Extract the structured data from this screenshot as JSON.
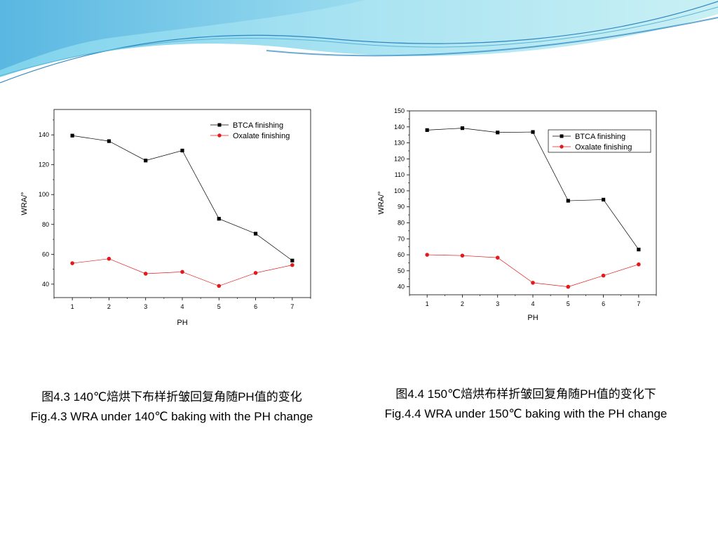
{
  "colors": {
    "banner_light": "#a8e6ee",
    "banner_mid": "#6fc6e4",
    "banner_dark": "#2e86c1",
    "series_btca": "#000000",
    "series_oxalate": "#e31a1c"
  },
  "chart_data": [
    {
      "type": "line",
      "xlabel": "PH",
      "ylabel": "WRA/°",
      "xlim": [
        0.5,
        7.5
      ],
      "ylim": [
        31,
        157
      ],
      "xticks": [
        1,
        2,
        3,
        4,
        5,
        6,
        7
      ],
      "yticks": [
        40,
        60,
        80,
        100,
        120,
        140
      ],
      "grid": false,
      "legend": "top-right",
      "series": [
        {
          "name": "BTCA finishing",
          "marker": "square",
          "color": "#000000",
          "x": [
            1,
            2,
            3,
            4,
            5,
            6,
            7
          ],
          "y": [
            139.5,
            135.8,
            122.8,
            129.5,
            83.8,
            73.8,
            55.8
          ]
        },
        {
          "name": "Oxalate finishing",
          "marker": "circle",
          "color": "#e31a1c",
          "x": [
            1,
            2,
            3,
            4,
            5,
            6,
            7
          ],
          "y": [
            54.0,
            57.0,
            47.0,
            48.2,
            38.8,
            47.5,
            52.8
          ]
        }
      ]
    },
    {
      "type": "line",
      "xlabel": "PH",
      "ylabel": "WRA/°",
      "xlim": [
        0.5,
        7.5
      ],
      "ylim": [
        35,
        150
      ],
      "xticks": [
        1,
        2,
        3,
        4,
        5,
        6,
        7
      ],
      "yticks": [
        40,
        50,
        60,
        70,
        80,
        90,
        100,
        110,
        120,
        130,
        140,
        150
      ],
      "grid": false,
      "legend": "top-right",
      "series": [
        {
          "name": "BTCA finishing",
          "marker": "square",
          "color": "#000000",
          "x": [
            1,
            2,
            3,
            4,
            5,
            6,
            7
          ],
          "y": [
            138.0,
            139.2,
            136.5,
            136.8,
            93.8,
            94.5,
            63.3
          ]
        },
        {
          "name": "Oxalate finishing",
          "marker": "circle",
          "color": "#e31a1c",
          "x": [
            1,
            2,
            3,
            4,
            5,
            6,
            7
          ],
          "y": [
            60.0,
            59.5,
            58.2,
            42.5,
            40.0,
            47.0,
            54.0
          ]
        }
      ]
    }
  ],
  "captions": [
    {
      "cn": "图4.3  140℃焙烘下布样折皱回复角随PH值的变化",
      "en": "Fig.4.3 WRA under 140℃ baking with the PH change"
    },
    {
      "cn": "图4.4 150℃焙烘布样折皱回复角随PH值的变化下",
      "en": "Fig.4.4 WRA under 150℃ baking with the PH change"
    }
  ]
}
